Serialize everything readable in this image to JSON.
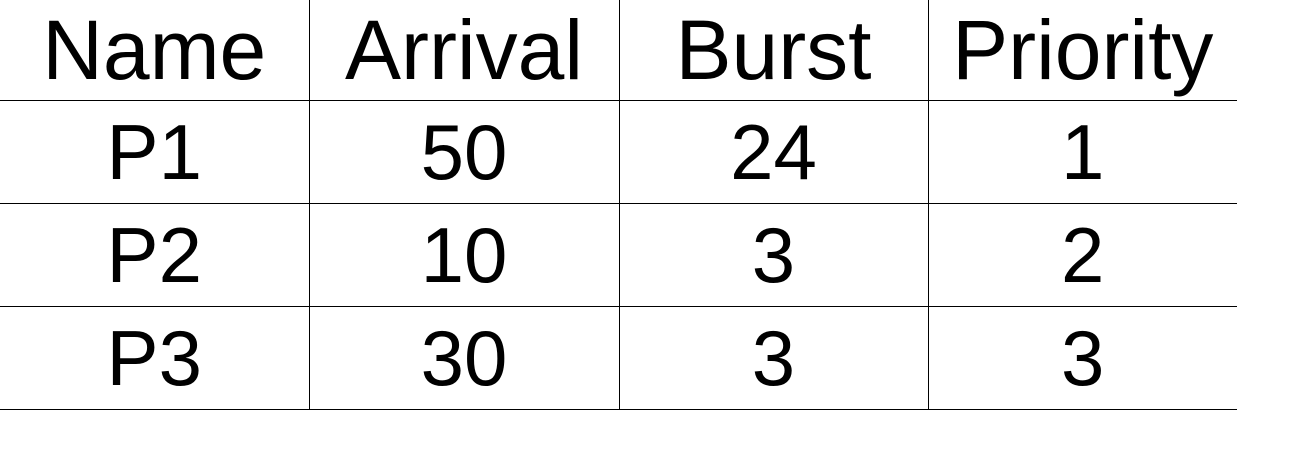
{
  "table": {
    "columns": [
      "Name",
      "Arrival",
      "Burst",
      "Priority"
    ],
    "rows": [
      [
        "P1",
        "50",
        "24",
        "1"
      ],
      [
        "P2",
        "10",
        "3",
        "2"
      ],
      [
        "P3",
        "30",
        "3",
        "3"
      ]
    ]
  }
}
